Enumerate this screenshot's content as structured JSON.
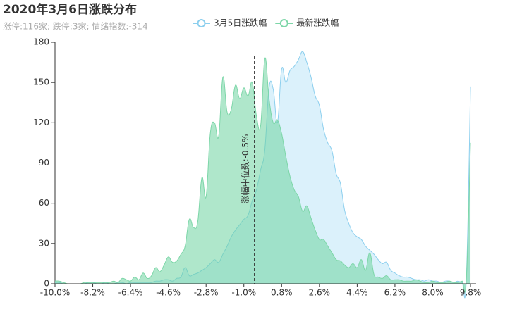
{
  "chart_data": {
    "type": "area",
    "title": "2020年3月6日涨跌分布",
    "subtitle": "涨停:116家; 跌停:3家; 情绪指数:-314",
    "x": [
      -10,
      -9.8,
      -9.6,
      -9.4,
      -9.2,
      -9,
      -8.8,
      -8.6,
      -8.4,
      -8.2,
      -8,
      -7.8,
      -7.6,
      -7.4,
      -7.2,
      -7,
      -6.8,
      -6.6,
      -6.4,
      -6.2,
      -6,
      -5.8,
      -5.6,
      -5.4,
      -5.2,
      -5,
      -4.8,
      -4.6,
      -4.4,
      -4.2,
      -4,
      -3.8,
      -3.6,
      -3.4,
      -3.2,
      -3,
      -2.8,
      -2.6,
      -2.4,
      -2.2,
      -2,
      -1.8,
      -1.6,
      -1.4,
      -1.2,
      -1,
      -0.8,
      -0.6,
      -0.4,
      -0.2,
      0,
      0.2,
      0.4,
      0.6,
      0.8,
      1,
      1.2,
      1.4,
      1.6,
      1.8,
      2,
      2.2,
      2.4,
      2.6,
      2.8,
      3,
      3.2,
      3.4,
      3.6,
      3.8,
      4,
      4.2,
      4.4,
      4.6,
      4.8,
      5,
      5.2,
      5.4,
      5.6,
      5.8,
      6,
      6.2,
      6.4,
      6.6,
      6.8,
      7,
      7.2,
      7.4,
      7.6,
      7.8,
      8,
      8.2,
      8.4,
      8.6,
      8.8,
      9,
      9.2,
      9.4,
      9.6,
      9.8
    ],
    "series": [
      {
        "name": "3月5日涨跌幅",
        "color": "#8ccfee",
        "fill": "rgba(190,230,248,0.55)",
        "values": [
          1,
          1,
          0,
          0,
          0,
          0,
          0,
          0,
          1,
          1,
          0,
          0,
          1,
          0,
          0,
          1,
          1,
          0,
          1,
          1,
          1,
          1,
          1,
          1,
          2,
          2,
          3,
          3,
          2,
          4,
          5,
          12,
          6,
          7,
          8,
          10,
          12,
          15,
          18,
          16,
          22,
          28,
          35,
          40,
          44,
          48,
          51,
          62,
          70,
          85,
          100,
          146,
          145,
          120,
          160,
          150,
          159,
          162,
          167,
          173,
          165,
          154,
          140,
          133,
          115,
          105,
          99,
          82,
          75,
          55,
          45,
          38,
          35,
          33,
          28,
          25,
          22,
          18,
          15,
          16,
          10,
          8,
          6,
          5,
          5,
          4,
          3,
          3,
          2,
          3,
          2,
          2,
          1,
          2,
          2,
          1,
          2,
          1,
          3,
          147
        ]
      },
      {
        "name": "最新涨跌幅",
        "color": "#7dd6a8",
        "fill": "rgba(110,212,160,0.55)",
        "values": [
          2,
          2,
          1,
          0,
          0,
          0,
          0,
          1,
          1,
          1,
          1,
          1,
          1,
          1,
          2,
          1,
          4,
          3,
          2,
          5,
          3,
          8,
          4,
          6,
          12,
          9,
          14,
          20,
          16,
          17,
          22,
          28,
          48,
          42,
          46,
          79,
          65,
          112,
          120,
          110,
          154,
          128,
          130,
          148,
          138,
          146,
          140,
          150,
          125,
          118,
          168,
          138,
          120,
          122,
          112,
          95,
          80,
          70,
          65,
          54,
          58,
          49,
          40,
          33,
          33,
          28,
          23,
          18,
          17,
          14,
          12,
          15,
          12,
          18,
          10,
          23,
          7,
          5,
          4,
          6,
          3,
          3,
          3,
          2,
          2,
          2,
          3,
          2,
          1,
          1,
          2,
          1,
          1,
          1,
          2,
          1,
          1,
          2,
          3,
          105
        ]
      }
    ],
    "median_line": {
      "value": -0.5,
      "label": "涨幅中位数:-0.5%"
    },
    "xlim": [
      -10,
      9.9
    ],
    "xticks": [
      {
        "value": -10,
        "label": "-10.0%"
      },
      {
        "value": -8.2,
        "label": "-8.2%"
      },
      {
        "value": -6.4,
        "label": "-6.4%"
      },
      {
        "value": -4.6,
        "label": "-4.6%"
      },
      {
        "value": -2.8,
        "label": "-2.8%"
      },
      {
        "value": -1,
        "label": "-1.0%"
      },
      {
        "value": 0.8,
        "label": "0.8%"
      },
      {
        "value": 2.6,
        "label": "2.6%"
      },
      {
        "value": 4.4,
        "label": "4.4%"
      },
      {
        "value": 6.2,
        "label": "6.2%"
      },
      {
        "value": 8,
        "label": "8.0%"
      },
      {
        "value": 9.8,
        "label": "9.8%"
      }
    ],
    "ylim": [
      0,
      180
    ],
    "yticks": [
      0,
      30,
      60,
      90,
      120,
      150,
      180
    ]
  }
}
